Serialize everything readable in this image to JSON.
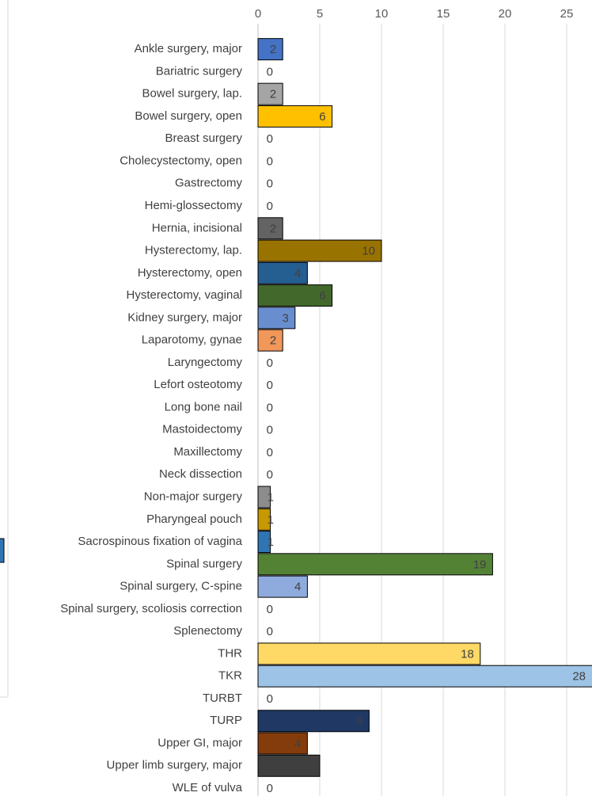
{
  "chart_data": {
    "type": "bar",
    "orientation": "horizontal",
    "categories": [
      "Ankle surgery, major",
      "Bariatric surgery",
      "Bowel surgery, lap.",
      "Bowel surgery, open",
      "Breast surgery",
      "Cholecystectomy, open",
      "Gastrectomy",
      "Hemi-glossectomy",
      "Hernia, incisional",
      "Hysterectomy, lap.",
      "Hysterectomy, open",
      "Hysterectomy, vaginal",
      "Kidney surgery, major",
      "Laparotomy, gynae",
      "Laryngectomy",
      "Lefort osteotomy",
      "Long bone nail",
      "Mastoidectomy",
      "Maxillectomy",
      "Neck dissection",
      "Non-major surgery",
      "Pharyngeal pouch",
      "Sacrospinous fixation of vagina",
      "Spinal surgery",
      "Spinal surgery, C-spine",
      "Spinal surgery, scoliosis correction",
      "Splenectomy",
      "THR",
      "TKR",
      "TURBT",
      "TURP",
      "Upper GI, major",
      "Upper limb surgery, major",
      "WLE of vulva"
    ],
    "values": [
      2,
      0,
      2,
      6,
      0,
      0,
      0,
      0,
      2,
      10,
      4,
      6,
      3,
      2,
      0,
      0,
      0,
      0,
      0,
      0,
      1,
      1,
      1,
      19,
      4,
      0,
      0,
      18,
      28,
      0,
      9,
      4,
      5,
      0
    ],
    "colors": [
      "#4472c4",
      null,
      "#a5a5a5",
      "#ffc000",
      null,
      null,
      null,
      null,
      "#636363",
      "#997300",
      "#255e91",
      "#43682b",
      "#698ed0",
      "#f1975a",
      null,
      null,
      null,
      null,
      null,
      null,
      "#8c8c8c",
      "#c89800",
      "#2f75b5",
      "#548235",
      "#8faadc",
      null,
      null,
      "#ffd966",
      "#9dc3e6",
      null,
      "#203864",
      "#843c0c",
      "#3f3f3f",
      null
    ],
    "xlim": [
      0,
      27
    ],
    "xticks": [
      0,
      5,
      10,
      15,
      20,
      25
    ],
    "grid": true
  }
}
